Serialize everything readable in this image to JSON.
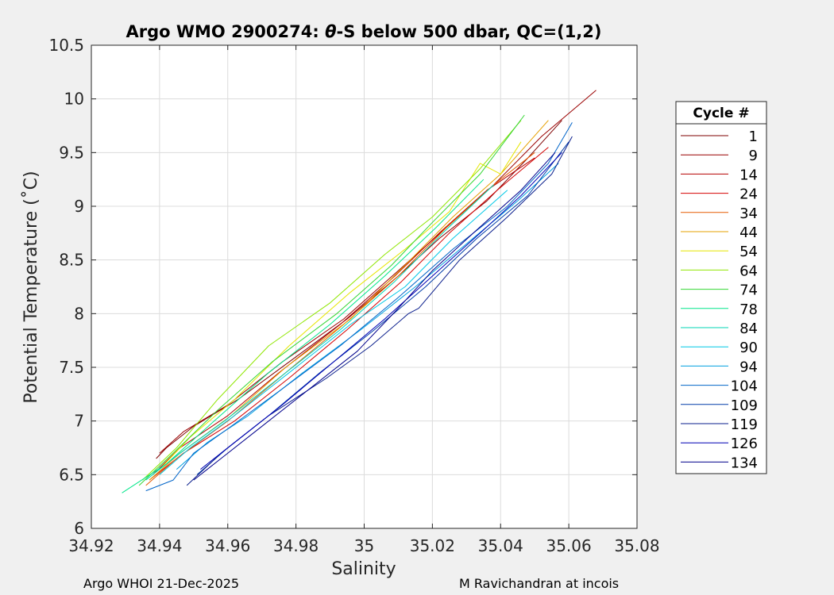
{
  "chart_data": {
    "type": "line",
    "title_prefix": "Argo WMO 2900274: ",
    "title_theta": "θ",
    "title_suffix": "-S below 500 dbar,  QC=(1,2)",
    "xlabel": "Salinity",
    "ylabel": "Potential Temperature (˚C)",
    "xlim": [
      34.92,
      35.08
    ],
    "ylim": [
      6,
      10.5
    ],
    "xticks": [
      34.92,
      34.94,
      34.96,
      34.98,
      35,
      35.02,
      35.04,
      35.06,
      35.08
    ],
    "xtick_labels": [
      "34.92",
      "34.94",
      "34.96",
      "34.98",
      "35",
      "35.02",
      "35.04",
      "35.06",
      "35.08"
    ],
    "yticks": [
      6,
      6.5,
      7,
      7.5,
      8,
      8.5,
      9,
      9.5,
      10,
      10.5
    ],
    "ytick_labels": [
      "6",
      "6.5",
      "7",
      "7.5",
      "8",
      "8.5",
      "9",
      "9.5",
      "10",
      "10.5"
    ],
    "grid": true,
    "legend_title": "Cycle #",
    "legend_position": "outside-right",
    "series": [
      {
        "name": "1",
        "color": "#7f0000",
        "x": [
          34.939,
          34.942,
          34.95,
          34.963,
          34.978,
          34.995,
          35.01,
          35.022,
          35.036,
          35.048,
          35.058
        ],
        "y": [
          6.65,
          6.75,
          6.95,
          7.2,
          7.55,
          7.95,
          8.35,
          8.7,
          9.05,
          9.45,
          9.8
        ]
      },
      {
        "name": "9",
        "color": "#9a0000",
        "x": [
          34.94,
          34.947,
          34.96,
          34.976,
          34.994,
          35.01,
          35.024,
          35.038,
          35.052,
          35.068
        ],
        "y": [
          6.7,
          6.9,
          7.15,
          7.55,
          7.95,
          8.4,
          8.8,
          9.2,
          9.65,
          10.08
        ]
      },
      {
        "name": "14",
        "color": "#b40000",
        "x": [
          34.938,
          34.946,
          34.96,
          34.975,
          34.993,
          35.009,
          35.022,
          35.036,
          35.05
        ],
        "y": [
          6.5,
          6.75,
          7.05,
          7.45,
          7.9,
          8.35,
          8.75,
          9.15,
          9.45
        ]
      },
      {
        "name": "24",
        "color": "#d40000",
        "x": [
          34.937,
          34.947,
          34.962,
          34.978,
          34.995,
          35.011,
          35.025,
          35.039,
          35.054
        ],
        "y": [
          6.45,
          6.7,
          7.0,
          7.4,
          7.85,
          8.3,
          8.75,
          9.15,
          9.55
        ]
      },
      {
        "name": "34",
        "color": "#e65a00",
        "x": [
          34.936,
          34.945,
          34.96,
          34.977,
          34.994,
          35.01,
          35.024,
          35.038,
          35.05
        ],
        "y": [
          6.4,
          6.65,
          7.0,
          7.45,
          7.9,
          8.35,
          8.8,
          9.2,
          9.5
        ]
      },
      {
        "name": "44",
        "color": "#e6a000",
        "x": [
          34.937,
          34.946,
          34.961,
          34.977,
          34.996,
          35.012,
          35.026,
          35.04,
          35.054
        ],
        "y": [
          6.45,
          6.7,
          7.05,
          7.5,
          7.95,
          8.45,
          8.9,
          9.3,
          9.8
        ]
      },
      {
        "name": "54",
        "color": "#e6e600",
        "x": [
          34.94,
          34.949,
          34.962,
          34.978,
          34.996,
          35.012,
          35.025,
          35.034,
          35.04,
          35.046
        ],
        "y": [
          6.55,
          6.85,
          7.2,
          7.7,
          8.2,
          8.6,
          8.95,
          9.4,
          9.3,
          9.6
        ]
      },
      {
        "name": "64",
        "color": "#8fe600",
        "x": [
          34.935,
          34.945,
          34.957,
          34.972,
          34.99,
          35.006,
          35.02,
          35.034,
          35.046
        ],
        "y": [
          6.45,
          6.75,
          7.2,
          7.7,
          8.1,
          8.55,
          8.9,
          9.35,
          9.8
        ]
      },
      {
        "name": "74",
        "color": "#33d633",
        "x": [
          34.934,
          34.944,
          34.957,
          34.973,
          34.992,
          35.008,
          35.02,
          35.034,
          35.047
        ],
        "y": [
          6.4,
          6.7,
          7.1,
          7.55,
          8.0,
          8.45,
          8.85,
          9.3,
          9.85
        ]
      },
      {
        "name": "78",
        "color": "#00e68a",
        "x": [
          34.929,
          34.942,
          34.956,
          34.972,
          34.99,
          35.006,
          35.021,
          35.035
        ],
        "y": [
          6.33,
          6.6,
          7.0,
          7.45,
          7.9,
          8.35,
          8.8,
          9.25
        ]
      },
      {
        "name": "84",
        "color": "#00d6b4",
        "x": [
          34.936,
          34.946,
          34.959,
          34.975,
          34.993,
          35.009,
          35.023,
          35.038
        ],
        "y": [
          6.45,
          6.7,
          7.0,
          7.4,
          7.85,
          8.3,
          8.75,
          9.2
        ]
      },
      {
        "name": "90",
        "color": "#00c8e6",
        "x": [
          34.94,
          34.949,
          34.962,
          34.978,
          34.996,
          35.012,
          35.026,
          35.042
        ],
        "y": [
          6.5,
          6.75,
          7.05,
          7.45,
          7.9,
          8.25,
          8.7,
          9.15
        ]
      },
      {
        "name": "94",
        "color": "#00a0e0",
        "x": [
          34.945,
          34.954,
          34.966,
          34.982,
          34.999,
          35.015,
          35.03,
          35.045,
          35.057
        ],
        "y": [
          6.55,
          6.8,
          7.05,
          7.45,
          7.85,
          8.25,
          8.65,
          9.05,
          9.4
        ]
      },
      {
        "name": "104",
        "color": "#0064c8",
        "x": [
          34.936,
          34.944,
          34.95,
          34.961,
          34.976,
          34.993,
          35.01,
          35.026,
          35.042,
          35.054,
          35.061
        ],
        "y": [
          6.35,
          6.45,
          6.7,
          6.95,
          7.3,
          7.7,
          8.15,
          8.6,
          9.0,
          9.4,
          9.78
        ]
      },
      {
        "name": "109",
        "color": "#003ca8",
        "x": [
          34.951,
          34.96,
          34.972,
          34.987,
          35.003,
          35.018,
          35.033,
          35.048,
          35.06
        ],
        "y": [
          6.5,
          6.75,
          7.05,
          7.45,
          7.85,
          8.25,
          8.7,
          9.1,
          9.6
        ]
      },
      {
        "name": "119",
        "color": "#0a1e8c",
        "x": [
          34.948,
          34.958,
          34.972,
          34.989,
          35.002,
          35.013,
          35.016,
          35.028,
          35.042,
          35.055,
          35.061
        ],
        "y": [
          6.4,
          6.7,
          7.05,
          7.4,
          7.7,
          8.0,
          8.05,
          8.5,
          8.9,
          9.3,
          9.65
        ]
      },
      {
        "name": "126",
        "color": "#0000b4",
        "x": [
          34.952,
          34.962,
          34.976,
          34.991,
          35.006,
          35.02,
          35.034,
          35.046,
          35.058
        ],
        "y": [
          6.55,
          6.8,
          7.15,
          7.55,
          7.95,
          8.35,
          8.75,
          9.1,
          9.5
        ]
      },
      {
        "name": "134",
        "color": "#00008c",
        "x": [
          34.95,
          34.958,
          34.968,
          34.982,
          34.998,
          35.01,
          35.02,
          35.032,
          35.046,
          35.056
        ],
        "y": [
          6.45,
          6.65,
          6.9,
          7.25,
          7.65,
          8.05,
          8.4,
          8.75,
          9.15,
          9.5
        ]
      }
    ]
  },
  "footer": {
    "left": "Argo WHOI 21-Dec-2025",
    "right": "M Ravichandran at incois"
  }
}
